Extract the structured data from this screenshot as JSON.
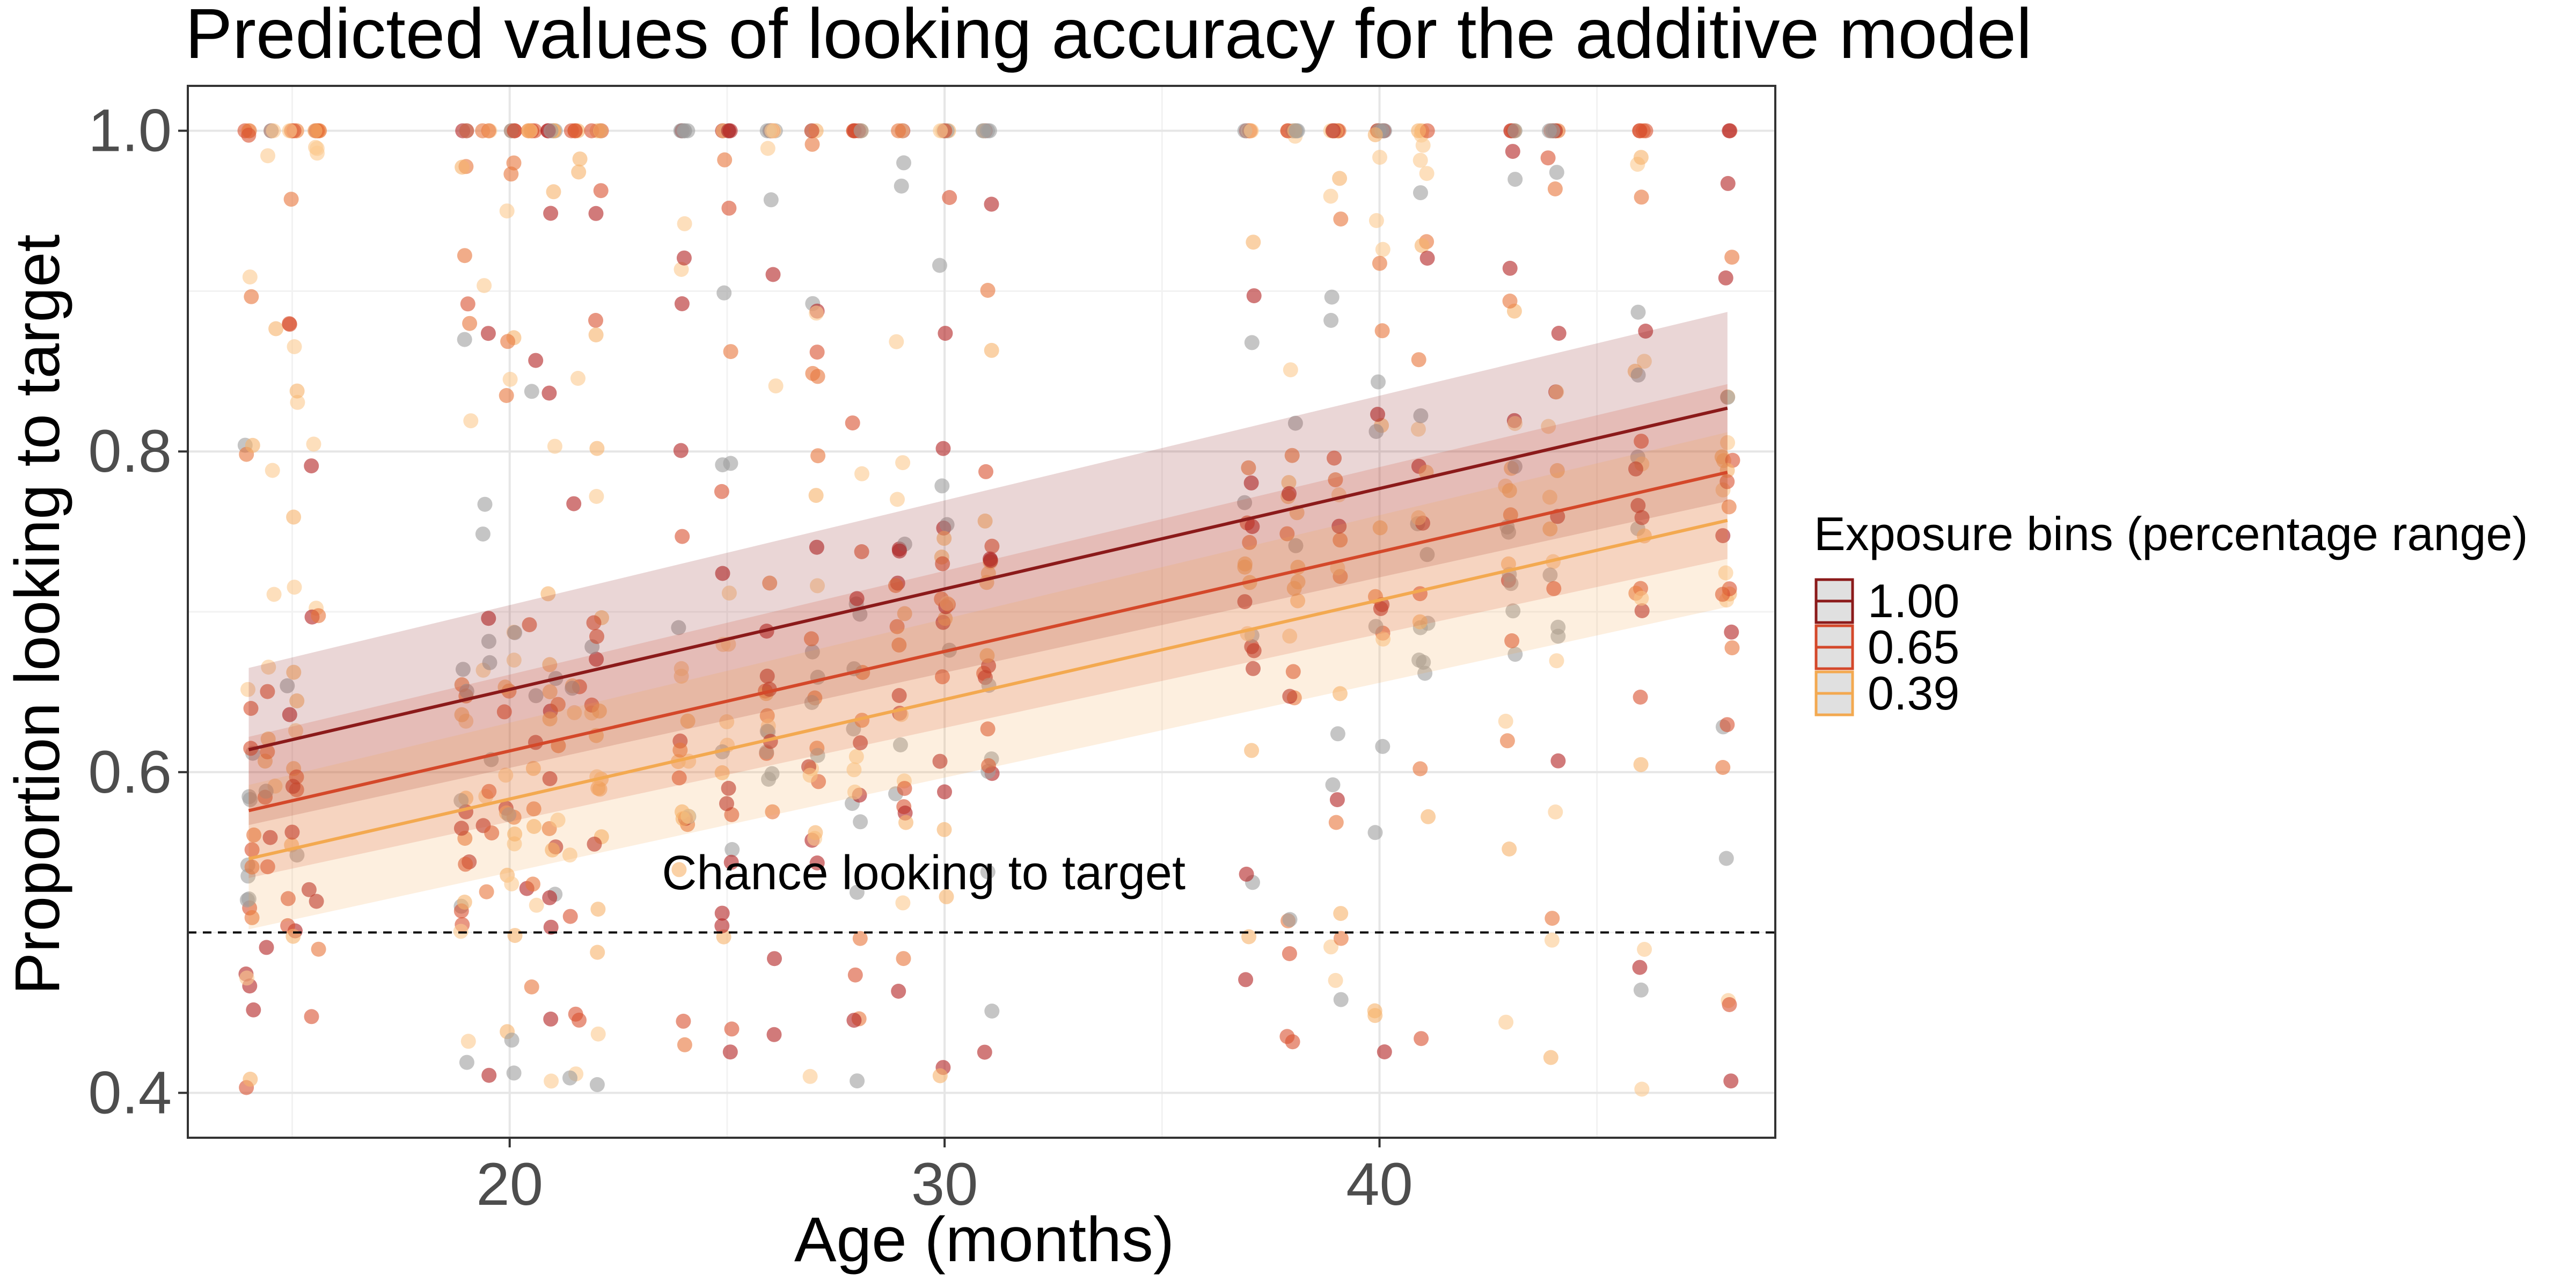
{
  "chart_data": {
    "type": "scatter",
    "title": "Predicted values of looking accuracy for the additive model",
    "xlabel": "Age (months)",
    "ylabel": "Proportion looking to target",
    "xlim": [
      12.6,
      49.1
    ],
    "ylim": [
      0.372,
      1.028
    ],
    "xticks": [
      20,
      30,
      40
    ],
    "yticks": [
      0.4,
      0.6,
      0.8,
      1.0
    ],
    "ytick_labels": [
      "0.4",
      "0.6",
      "0.8",
      "1.0"
    ],
    "grid": true,
    "legend": {
      "title": "Exposure bins (percentage range)",
      "position": "right",
      "entries": [
        "1.00",
        "0.65",
        "0.39"
      ]
    },
    "reference_line": {
      "y": 0.5,
      "style": "dashed",
      "label": "Chance looking to target",
      "label_x": 23.5,
      "label_y": 0.527
    },
    "point_x_groups": [
      14,
      14.5,
      15,
      15.5,
      19,
      19.5,
      20,
      20.5,
      21,
      21.5,
      22,
      24,
      25,
      26,
      27,
      28,
      29,
      30,
      31,
      37,
      38,
      39,
      40,
      41,
      43,
      44,
      46,
      48
    ],
    "series": [
      {
        "name": "1.00",
        "color": "#8b1a1a",
        "fit": {
          "x": [
            14,
            48
          ],
          "y": [
            0.614,
            0.827
          ]
        },
        "ci": {
          "x": [
            14,
            48
          ],
          "lower": [
            0.567,
            0.769
          ],
          "upper": [
            0.665,
            0.887
          ]
        }
      },
      {
        "name": "0.65",
        "color": "#d4482a",
        "fit": {
          "x": [
            14,
            48
          ],
          "y": [
            0.576,
            0.787
          ]
        },
        "ci": {
          "x": [
            14,
            48
          ],
          "lower": [
            0.534,
            0.733
          ],
          "upper": [
            0.622,
            0.842
          ]
        }
      },
      {
        "name": "0.39",
        "color": "#f3a950",
        "fit": {
          "x": [
            14,
            48
          ],
          "y": [
            0.546,
            0.757
          ]
        },
        "ci": {
          "x": [
            14,
            48
          ],
          "lower": [
            0.502,
            0.703
          ],
          "upper": [
            0.592,
            0.812
          ]
        }
      }
    ],
    "point_colors": [
      "#b22222",
      "#d9502f",
      "#e8743b",
      "#f6b26b",
      "#fbc98f",
      "#9e9e9e"
    ]
  }
}
